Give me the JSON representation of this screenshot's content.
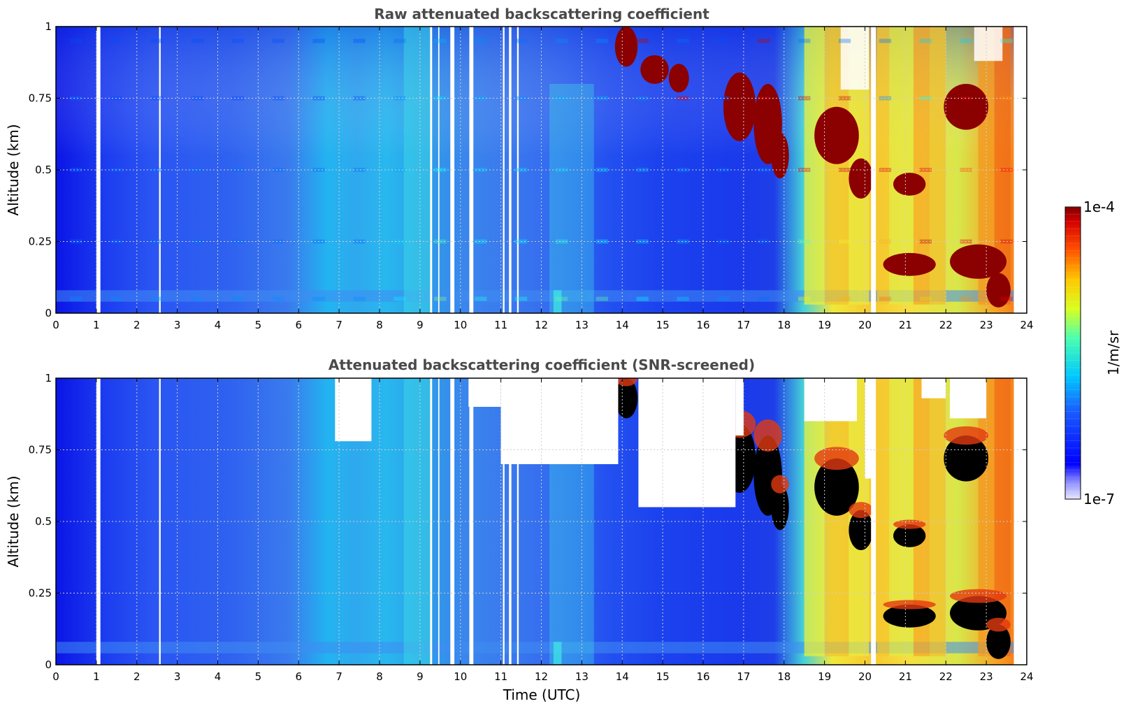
{
  "chart_data": [
    {
      "type": "heatmap",
      "title": "Raw attenuated backscattering coefficient",
      "xlabel": "",
      "ylabel": "Altitude (km)",
      "xlim": [
        0,
        24
      ],
      "ylim": [
        0,
        1
      ],
      "xticks": [
        "0",
        "1",
        "2",
        "3",
        "4",
        "5",
        "6",
        "7",
        "8",
        "9",
        "10",
        "11",
        "12",
        "13",
        "14",
        "15",
        "16",
        "17",
        "18",
        "19",
        "20",
        "21",
        "22",
        "23",
        "24"
      ],
      "yticks": [
        "0",
        "0.25",
        "0.5",
        "0.75",
        "1"
      ],
      "grid": true,
      "color_scale": "log",
      "value_range": [
        1e-07,
        0.0001
      ],
      "profile_hours": [
        0,
        1,
        2,
        3,
        4,
        5,
        6,
        7,
        8,
        9,
        10,
        11,
        12,
        13,
        14,
        15,
        16,
        17,
        18,
        19,
        20,
        21,
        22,
        23
      ],
      "profile_altitudes_km": [
        0.05,
        0.25,
        0.5,
        0.75,
        0.95
      ],
      "log10_values": [
        [
          -6.2,
          -6.3,
          -6.3,
          -6.3,
          -6.4
        ],
        [
          -6.2,
          -6.3,
          -6.3,
          -6.4,
          -6.4
        ],
        [
          -6.2,
          -6.3,
          -6.3,
          -6.4,
          -6.4
        ],
        [
          -6.2,
          -6.3,
          -6.3,
          -6.4,
          -6.4
        ],
        [
          -6.2,
          -6.3,
          -6.3,
          -6.4,
          -6.4
        ],
        [
          -6.2,
          -6.3,
          -6.3,
          -6.4,
          -6.4
        ],
        [
          -6.2,
          -6.3,
          -6.3,
          -6.4,
          -6.4
        ],
        [
          -6.2,
          -6.3,
          -6.3,
          -6.4,
          -6.4
        ],
        [
          -5.9,
          -6.0,
          -6.1,
          -6.2,
          -6.3
        ],
        [
          -5.5,
          -5.7,
          -5.9,
          -6.0,
          -6.1
        ],
        [
          -5.8,
          -5.9,
          -6.0,
          -6.1,
          -6.2
        ],
        [
          -5.8,
          -5.9,
          -6.0,
          -6.2,
          -6.3
        ],
        [
          -5.6,
          -5.8,
          -6.0,
          -6.1,
          -6.2
        ],
        [
          -5.6,
          -5.9,
          -6.0,
          -6.1,
          -6.2
        ],
        [
          -5.9,
          -6.0,
          -6.1,
          -6.2,
          -4.2
        ],
        [
          -6.0,
          -6.1,
          -6.2,
          -4.3,
          -6.3
        ],
        [
          -6.2,
          -6.3,
          -6.3,
          -6.4,
          -6.4
        ],
        [
          -6.3,
          -6.3,
          -6.3,
          -4.2,
          -4.2
        ],
        [
          -5.2,
          -5.6,
          -4.3,
          -4.2,
          -6.3
        ],
        [
          -4.9,
          -5.1,
          -4.2,
          -4.2,
          -6.3
        ],
        [
          -4.7,
          -4.9,
          -4.3,
          -6.2,
          -6.3
        ],
        [
          -5.0,
          -4.2,
          -4.3,
          -5.8,
          -6.0
        ],
        [
          -4.8,
          -4.3,
          -4.6,
          -4.2,
          -6.0
        ],
        [
          -4.3,
          -4.3,
          -4.4,
          -4.8,
          -5.8
        ]
      ]
    },
    {
      "type": "heatmap",
      "title": "Attenuated backscattering coefficient (SNR-screened)",
      "xlabel": "Time (UTC)",
      "ylabel": "Altitude (km)",
      "xlim": [
        0,
        24
      ],
      "ylim": [
        0,
        1
      ],
      "xticks": [
        "0",
        "1",
        "2",
        "3",
        "4",
        "5",
        "6",
        "7",
        "8",
        "9",
        "10",
        "11",
        "12",
        "13",
        "14",
        "15",
        "16",
        "17",
        "18",
        "19",
        "20",
        "21",
        "22",
        "23",
        "24"
      ],
      "yticks": [
        "0",
        "0.25",
        "0.5",
        "0.75",
        "1"
      ],
      "grid": true,
      "color_scale": "log",
      "value_range": [
        1e-07,
        0.0001
      ],
      "colorbar": {
        "label": "1/m/sr",
        "max_label": "1e-4",
        "min_label": "1e-7"
      },
      "screened_out_color": "#ffffff",
      "saturated_color": "#000000"
    }
  ]
}
